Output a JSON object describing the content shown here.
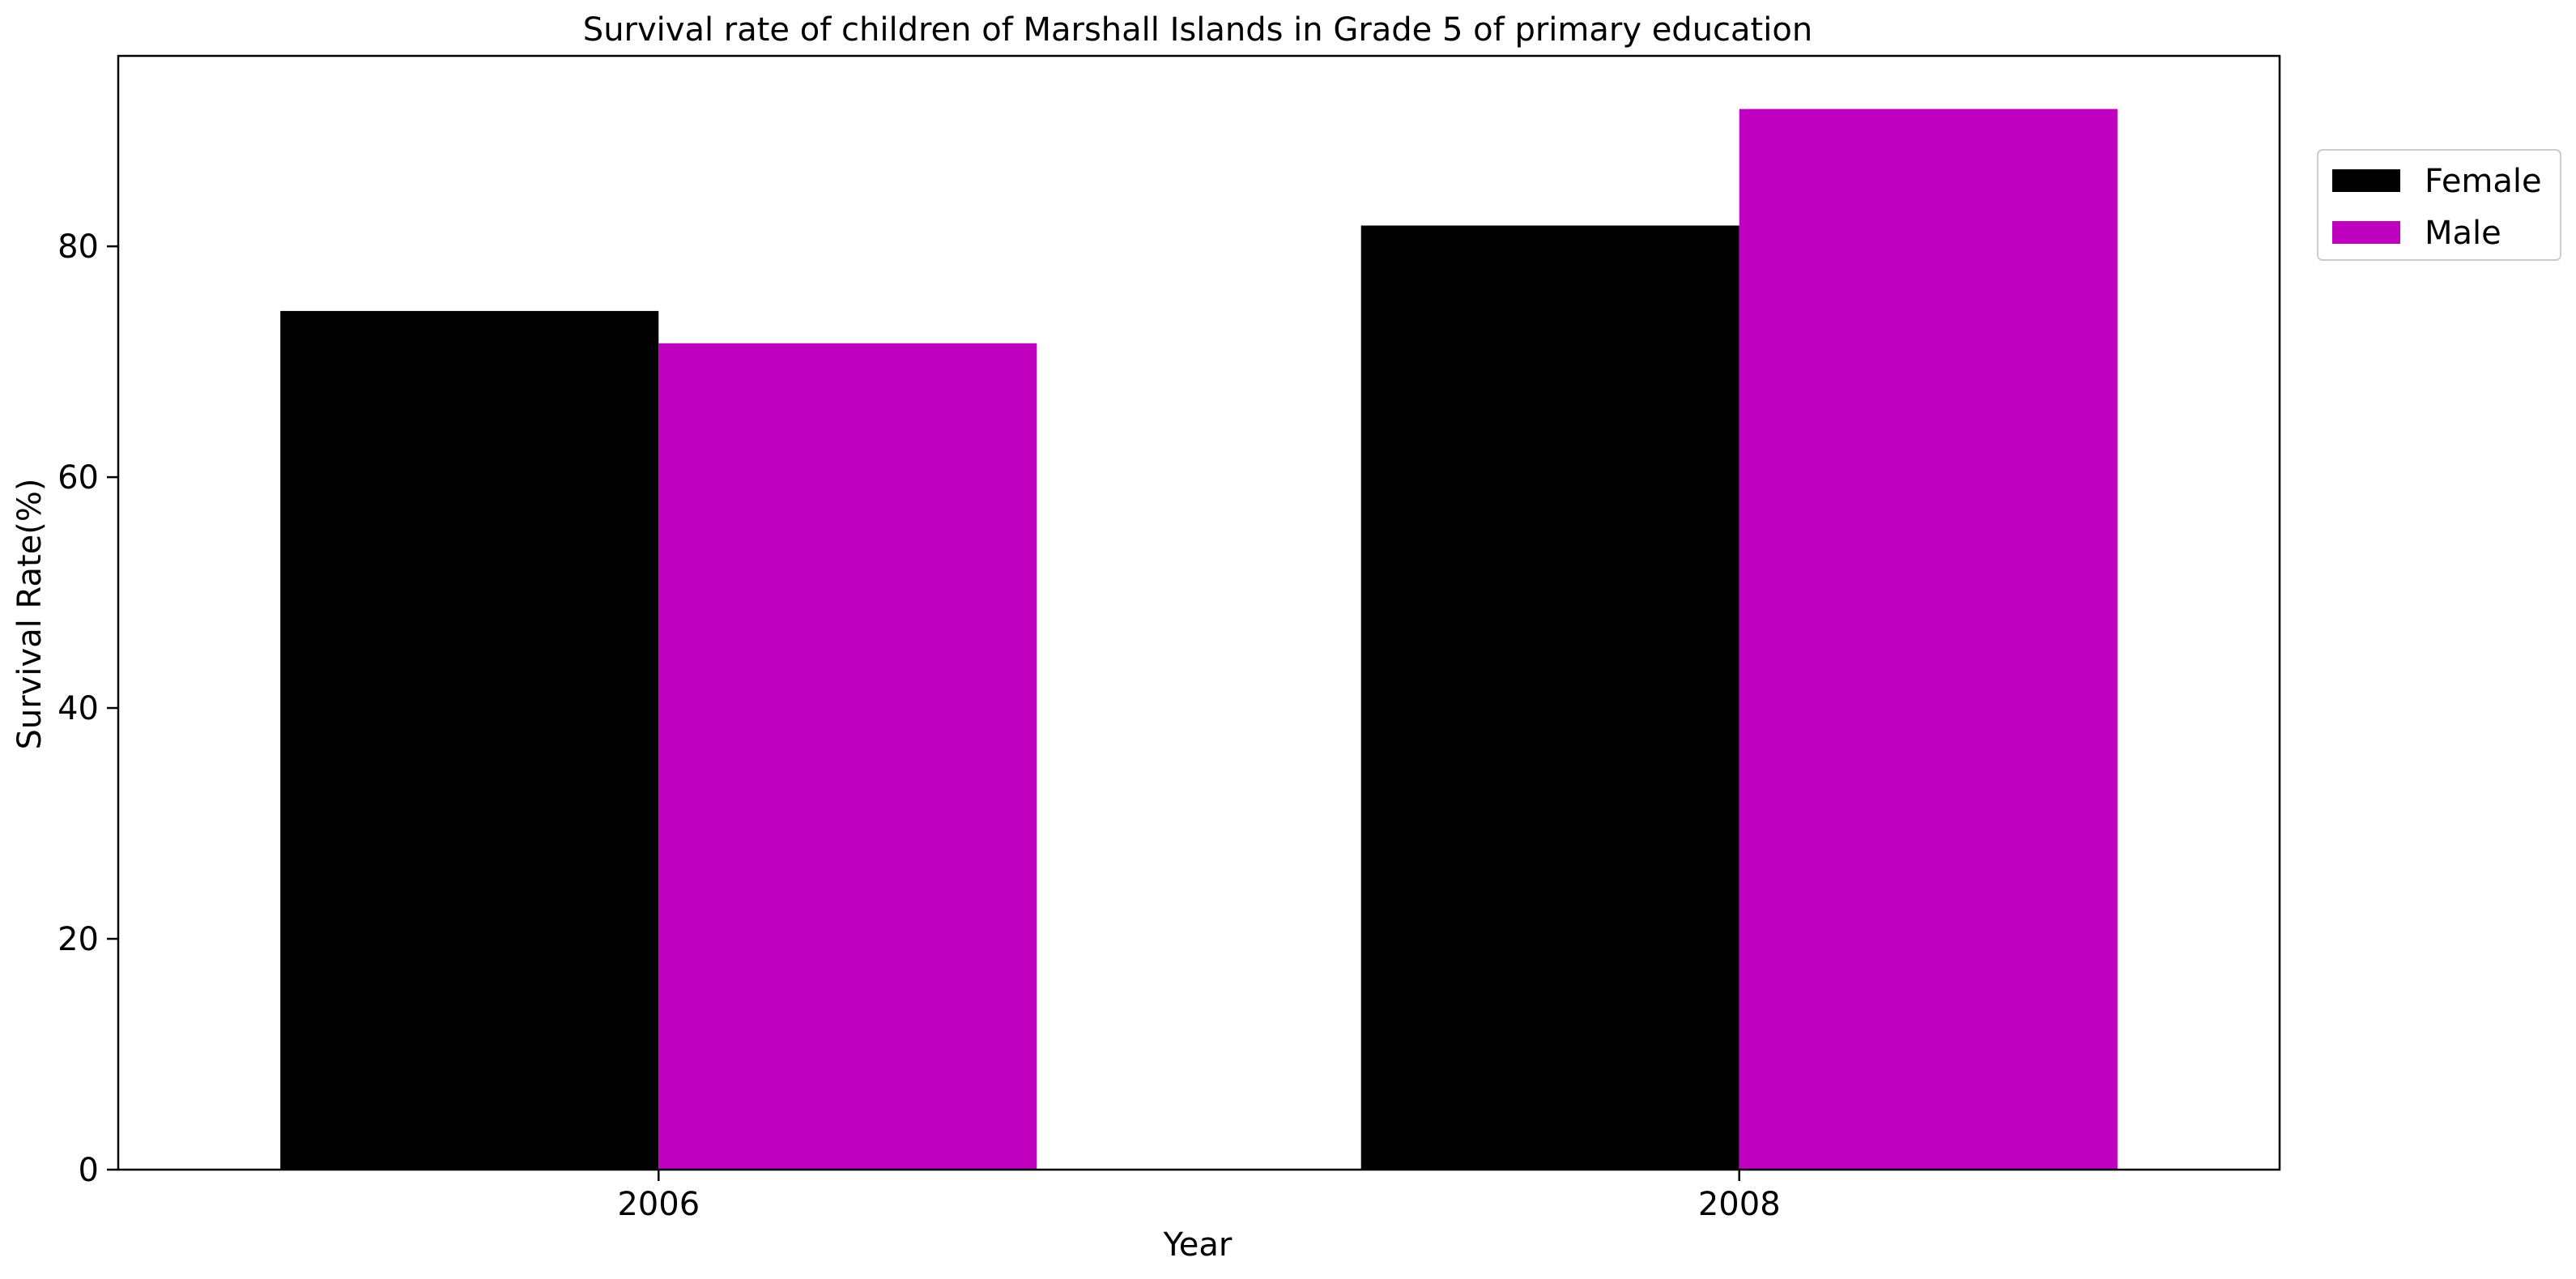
{
  "chart_data": {
    "type": "bar",
    "title": "Survival rate of children of Marshall Islands in Grade 5 of primary education",
    "xlabel": "Year",
    "ylabel": "Survival Rate(%)",
    "categories": [
      "2006",
      "2008"
    ],
    "series": [
      {
        "name": "Female",
        "values": [
          74.4,
          81.8
        ],
        "color": "#000000"
      },
      {
        "name": "Male",
        "values": [
          71.6,
          91.9
        ],
        "color": "#bf00bf"
      }
    ],
    "ylim": [
      0,
      96.5
    ],
    "yticks": [
      0,
      20,
      40,
      60,
      80
    ],
    "grid": false,
    "legend_position": "top-right, outside"
  }
}
